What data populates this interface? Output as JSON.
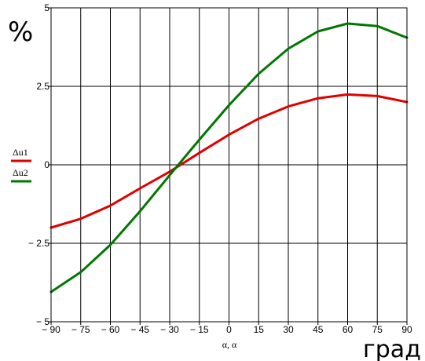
{
  "chart_data": {
    "type": "line",
    "xlabel": "α, α",
    "annotation_y_unit": "%",
    "annotation_x_unit": "град",
    "xlim": [
      -90,
      90
    ],
    "ylim": [
      -5,
      5
    ],
    "x_ticks": [
      -90,
      -75,
      -60,
      -45,
      -30,
      -15,
      0,
      15,
      30,
      45,
      60,
      75,
      90
    ],
    "x_tick_labels": [
      "− 90",
      "− 75",
      "− 60",
      "− 45",
      "− 30",
      "− 15",
      "0",
      "15",
      "30",
      "45",
      "60",
      "75",
      "90"
    ],
    "y_ticks": [
      -5,
      -2.5,
      0,
      2.5,
      5
    ],
    "y_tick_labels": [
      "− 5",
      "− 2.5",
      "0",
      "2.5",
      "5"
    ],
    "grid": true,
    "legend_position": "left",
    "x": [
      -90,
      -75,
      -60,
      -45,
      -30,
      -15,
      0,
      15,
      30,
      45,
      60,
      75,
      90
    ],
    "series": [
      {
        "name": "Δu1",
        "color": "#e00000",
        "values": [
          -2.0,
          -1.72,
          -1.3,
          -0.75,
          -0.22,
          0.38,
          0.96,
          1.47,
          1.86,
          2.12,
          2.24,
          2.19,
          2.0
        ]
      },
      {
        "name": "Δu2",
        "color": "#007800",
        "values": [
          -4.05,
          -3.42,
          -2.55,
          -1.48,
          -0.33,
          0.8,
          1.9,
          2.9,
          3.7,
          4.25,
          4.5,
          4.42,
          4.05
        ]
      }
    ]
  }
}
